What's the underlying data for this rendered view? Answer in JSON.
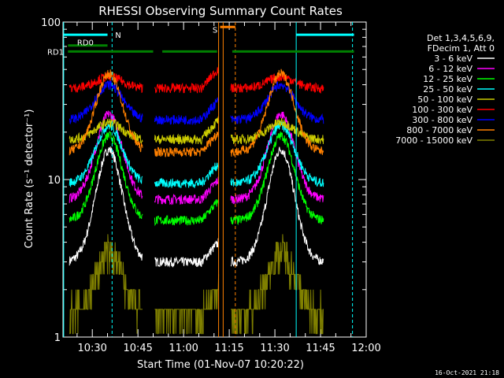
{
  "chart_data": {
    "type": "line",
    "title": "RHESSI Observing Summary Count Rates",
    "xlabel": "Start Time (01-Nov-07 10:20:22)",
    "ylabel": "Count Rate (s⁻¹ detector⁻¹)",
    "yscale": "log",
    "ylim": [
      1,
      100
    ],
    "xlim_minutes": [
      20.37,
      120
    ],
    "x_ticks": [
      {
        "min": 30,
        "label": "10:30"
      },
      {
        "min": 45,
        "label": "10:45"
      },
      {
        "min": 60,
        "label": "11:00"
      },
      {
        "min": 75,
        "label": "11:15"
      },
      {
        "min": 90,
        "label": "11:30"
      },
      {
        "min": 105,
        "label": "11:45"
      },
      {
        "min": 120,
        "label": "12:00"
      }
    ],
    "y_ticks": [
      {
        "value": 1,
        "label": "1"
      },
      {
        "value": 10,
        "label": "10"
      },
      {
        "value": 100,
        "label": "100"
      }
    ],
    "legend_header": [
      "Det 1,3,4,5,6,9,",
      "FDecim 1, Att 0"
    ],
    "legend_position": "top-right",
    "series": [
      {
        "name": "3 - 6 keV",
        "color": "#ffffff",
        "baseline": 3.0,
        "peak": 15.5
      },
      {
        "name": "6 - 12 keV",
        "color": "#ff00ff",
        "baseline": 7.5,
        "peak": 26
      },
      {
        "name": "12 - 25 keV",
        "color": "#00ff00",
        "baseline": 5.5,
        "peak": 19
      },
      {
        "name": "25 - 50 keV",
        "color": "#00ffff",
        "baseline": 9.5,
        "peak": 22
      },
      {
        "name": "50 - 100 keV",
        "color": "#cccc00",
        "baseline": 18,
        "peak": 23
      },
      {
        "name": "100 - 300 keV",
        "color": "#ff0000",
        "baseline": 38,
        "peak": 45
      },
      {
        "name": "300 - 800 keV",
        "color": "#0000ff",
        "baseline": 24,
        "peak": 40
      },
      {
        "name": "800 - 7000 keV",
        "color": "#ff8000",
        "baseline": 15,
        "peak": 47
      },
      {
        "name": "7000 - 15000 keV",
        "color": "#808000",
        "baseline": 1.4,
        "peak": 3.5
      }
    ],
    "segments_minutes": [
      [
        22.5,
        46.5
      ],
      [
        50.5,
        71.5
      ],
      [
        75.5,
        106.0
      ]
    ],
    "peaks_minutes": [
      35.5,
      92.0
    ],
    "vlines": [
      {
        "min": 20.6,
        "color": "#00ffff",
        "style": "solid"
      },
      {
        "min": 36.5,
        "color": "#00ffff",
        "style": "dashed"
      },
      {
        "min": 71.5,
        "color": "#ff8000",
        "style": "solid"
      },
      {
        "min": 73.0,
        "color": "#ff8000",
        "style": "solid"
      },
      {
        "min": 77.0,
        "color": "#ff8000",
        "style": "dashed"
      },
      {
        "min": 97.0,
        "color": "#00ffff",
        "style": "solid"
      },
      {
        "min": 115.5,
        "color": "#00ffff",
        "style": "dashed"
      }
    ],
    "flag_bars": [
      {
        "label": "N",
        "color": "#00ffff",
        "value": 83,
        "segments": [
          [
            20.6,
            35.0
          ],
          [
            97.0,
            116.0
          ]
        ]
      },
      {
        "label": "RD0",
        "color": "#008000",
        "value": 71,
        "segments": [
          [
            22.0,
            35.0
          ]
        ]
      },
      {
        "label": "RD1",
        "color": "#008000",
        "value": 65,
        "segments": [
          [
            22.0,
            50.0
          ],
          [
            53.0,
            71.0
          ],
          [
            76.0,
            116.0
          ]
        ]
      },
      {
        "label": "S",
        "color": "#ff8000",
        "value": 93,
        "segments": [
          [
            72.0,
            77.0
          ]
        ]
      }
    ],
    "timestamp": "16-Oct-2021 21:18"
  }
}
